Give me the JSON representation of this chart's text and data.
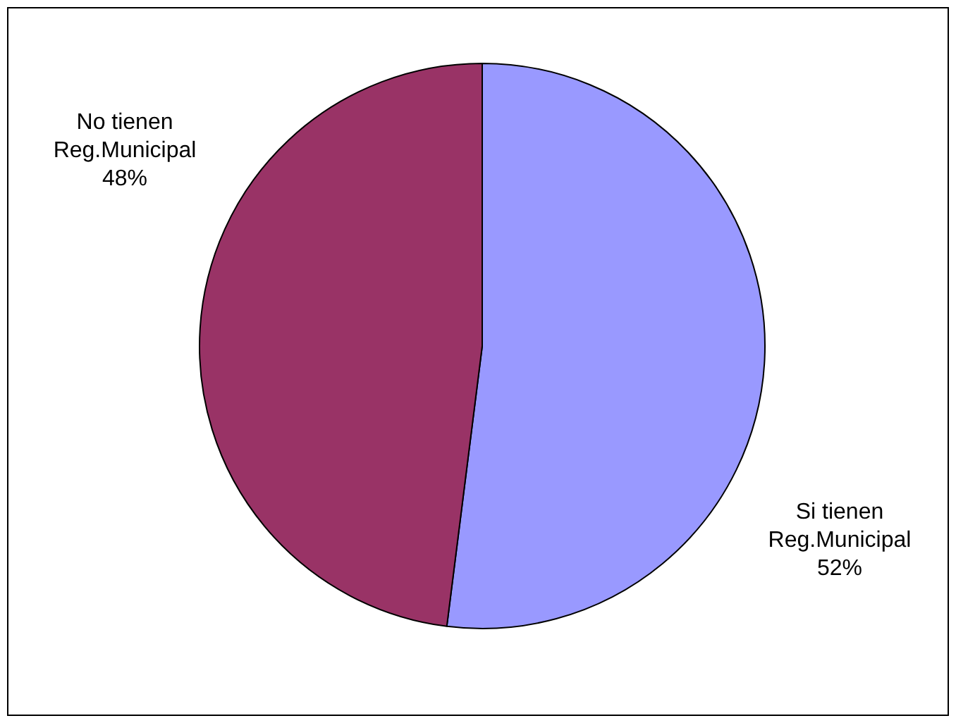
{
  "chart_data": {
    "type": "pie",
    "categories": [
      "Si tienen Reg.Municipal",
      "No tienen Reg.Municipal"
    ],
    "values": [
      52,
      48
    ],
    "colors": [
      "#9999ff",
      "#993366"
    ],
    "value_labels": [
      "52%",
      "48%"
    ],
    "legend": false
  }
}
